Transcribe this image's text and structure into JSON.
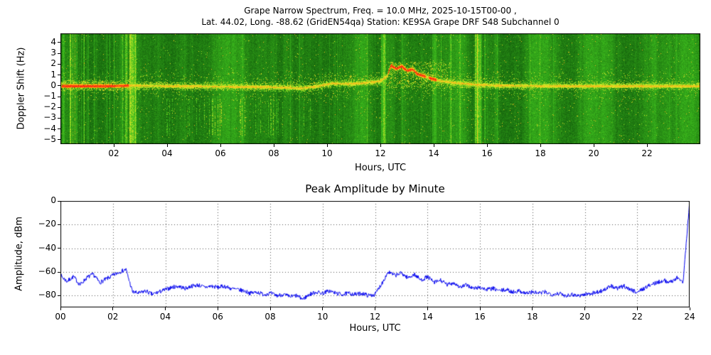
{
  "figure": {
    "background": "#ffffff",
    "frame_color": "#000000"
  },
  "chart_data": [
    {
      "type": "heatmap",
      "title_line1": "Grape Narrow Spectrum, Freq. = 10.0 MHz, 2025-10-15T00-00 ,",
      "title_line2": "Lat.  44.02, Long. -88.62 (GridEN54qa) Station: KE9SA Grape DRF S48 Subchannel 0",
      "xlabel": "Hours, UTC",
      "ylabel": "Doppler Shift (Hz)",
      "xlim": [
        0,
        24
      ],
      "ylim": [
        -5.4,
        4.85
      ],
      "xticks": {
        "values": [
          2,
          4,
          6,
          8,
          10,
          12,
          14,
          16,
          18,
          20,
          22
        ],
        "labels": [
          "02",
          "04",
          "06",
          "08",
          "10",
          "12",
          "14",
          "16",
          "18",
          "20",
          "22"
        ]
      },
      "yticks": {
        "values": [
          4,
          3,
          2,
          1,
          0,
          -1,
          -2,
          -3,
          -4,
          -5
        ],
        "labels": [
          "4",
          "3",
          "2",
          "1",
          "0",
          "−1",
          "−2",
          "−3",
          "−4",
          "−5"
        ]
      },
      "colormap": [
        "#0a460a",
        "#2a8e1e",
        "#d8eb36",
        "#ff8800",
        "#ff2a00"
      ],
      "spectrogram": {
        "seed": 1337,
        "carrier": [
          [
            0,
            0
          ],
          [
            2,
            0
          ],
          [
            2.6,
            0.05
          ],
          [
            4,
            0
          ],
          [
            6,
            -0.05
          ],
          [
            8,
            -0.1
          ],
          [
            9,
            -0.2
          ],
          [
            9.6,
            -0.05
          ],
          [
            10.2,
            0.25
          ],
          [
            10.8,
            0.2
          ],
          [
            11.4,
            0.3
          ],
          [
            12.0,
            0.45
          ],
          [
            12.25,
            0.9
          ],
          [
            12.4,
            1.9
          ],
          [
            12.6,
            1.6
          ],
          [
            12.8,
            1.85
          ],
          [
            13.0,
            1.4
          ],
          [
            13.2,
            1.55
          ],
          [
            13.4,
            1.1
          ],
          [
            13.6,
            0.95
          ],
          [
            13.9,
            0.7
          ],
          [
            14.3,
            0.45
          ],
          [
            14.8,
            0.3
          ],
          [
            15.5,
            0.15
          ],
          [
            16.5,
            0.05
          ],
          [
            18,
            0
          ],
          [
            21,
            0
          ],
          [
            24,
            0
          ]
        ],
        "red_segments": [
          {
            "t0": 0.05,
            "t1": 2.55
          },
          {
            "t0": 12.3,
            "t1": 13.7
          },
          {
            "t0": 13.8,
            "t1": 14.1
          }
        ],
        "bright_columns": [
          {
            "t0": 0.08,
            "t1": 0.16,
            "boost": 0.18
          },
          {
            "t0": 0.35,
            "t1": 0.42,
            "boost": 0.15
          },
          {
            "t0": 2.6,
            "t1": 2.85,
            "boost": 0.26
          },
          {
            "t0": 12.02,
            "t1": 12.2,
            "boost": 0.3
          },
          {
            "t0": 13.95,
            "t1": 14.12,
            "boost": 0.16
          },
          {
            "t0": 15.55,
            "t1": 15.78,
            "boost": 0.28
          },
          {
            "t0": 15.9,
            "t1": 15.97,
            "boost": 0.15
          }
        ],
        "full_streaks": [
          {
            "t0": 0,
            "t1": 2.7,
            "p": 0.12,
            "boost": 0.22
          },
          {
            "t0": 4.2,
            "t1": 9.6,
            "p": 0.03,
            "boost": 0.12
          },
          {
            "t0": 10.0,
            "t1": 16.0,
            "p": 0.04,
            "boost": 0.14
          },
          {
            "t0": 16.0,
            "t1": 24,
            "p": 0.02,
            "boost": 0.1
          }
        ],
        "band_streaks": [
          {
            "t0": 3.5,
            "t1": 9.8,
            "hz0": -4.6,
            "hz1": -1.2,
            "p": 0.1,
            "boost": 0.28
          },
          {
            "t0": 5.0,
            "t1": 7.5,
            "hz0": -3.5,
            "hz1": -1.5,
            "p": 0.08,
            "boost": 0.3
          }
        ],
        "clouds": [
          {
            "t0": 0.0,
            "t1": 2.6,
            "hz0": -0.5,
            "hz1": 0.5,
            "p": 0.25
          },
          {
            "t0": 2.6,
            "t1": 9.8,
            "hz0": -0.4,
            "hz1": 0.4,
            "p": 0.08
          },
          {
            "t0": 9.8,
            "t1": 12.3,
            "hz0": -0.1,
            "hz1": 1.0,
            "p": 0.12
          },
          {
            "t0": 12.3,
            "t1": 14.6,
            "hz0": -0.3,
            "hz1": 2.2,
            "p": 0.2
          },
          {
            "t0": 14.6,
            "t1": 16.5,
            "hz0": -0.2,
            "hz1": 0.9,
            "p": 0.12
          },
          {
            "t0": 16.5,
            "t1": 24,
            "hz0": -0.3,
            "hz1": 0.5,
            "p": 0.06
          }
        ]
      }
    },
    {
      "type": "line",
      "title": "Peak Amplitude by Minute",
      "xlabel": "Hours, UTC",
      "ylabel": "Amplitude, dBm",
      "xlim": [
        0,
        24
      ],
      "ylim": [
        -90,
        0
      ],
      "xticks": {
        "values": [
          0,
          2,
          4,
          6,
          8,
          10,
          12,
          14,
          16,
          18,
          20,
          22,
          24
        ],
        "labels": [
          "00",
          "02",
          "04",
          "06",
          "08",
          "10",
          "12",
          "14",
          "16",
          "18",
          "20",
          "22",
          "24"
        ]
      },
      "yticks": {
        "values": [
          0,
          -20,
          -40,
          -60,
          -80
        ],
        "labels": [
          "0",
          "−20",
          "−40",
          "−60",
          "−80"
        ]
      },
      "line_color": "#0000ee",
      "grid_color": "#555555",
      "grid_style": "dotted",
      "seed": 7,
      "jitter_db": 1.8,
      "x_start": 0,
      "x_step": 0.25,
      "values": [
        -63,
        -68,
        -64,
        -71,
        -65,
        -62,
        -69,
        -66,
        -63,
        -60,
        -58,
        -77,
        -78,
        -76,
        -79,
        -77,
        -75,
        -73,
        -72,
        -74,
        -72,
        -71,
        -73,
        -72,
        -73,
        -72,
        -74,
        -75,
        -76,
        -78,
        -77,
        -79,
        -78,
        -80,
        -79,
        -81,
        -80,
        -83,
        -79,
        -77,
        -78,
        -76,
        -78,
        -79,
        -78,
        -79,
        -78,
        -80,
        -79,
        -70,
        -60,
        -63,
        -61,
        -65,
        -62,
        -67,
        -64,
        -69,
        -67,
        -71,
        -69,
        -73,
        -71,
        -74,
        -73,
        -75,
        -74,
        -76,
        -75,
        -77,
        -76,
        -78,
        -77,
        -78,
        -77,
        -79,
        -78,
        -80,
        -79,
        -80,
        -79,
        -78,
        -77,
        -75,
        -72,
        -74,
        -72,
        -75,
        -77,
        -74,
        -71,
        -69,
        -67,
        -69,
        -65,
        -68,
        0
      ]
    }
  ]
}
